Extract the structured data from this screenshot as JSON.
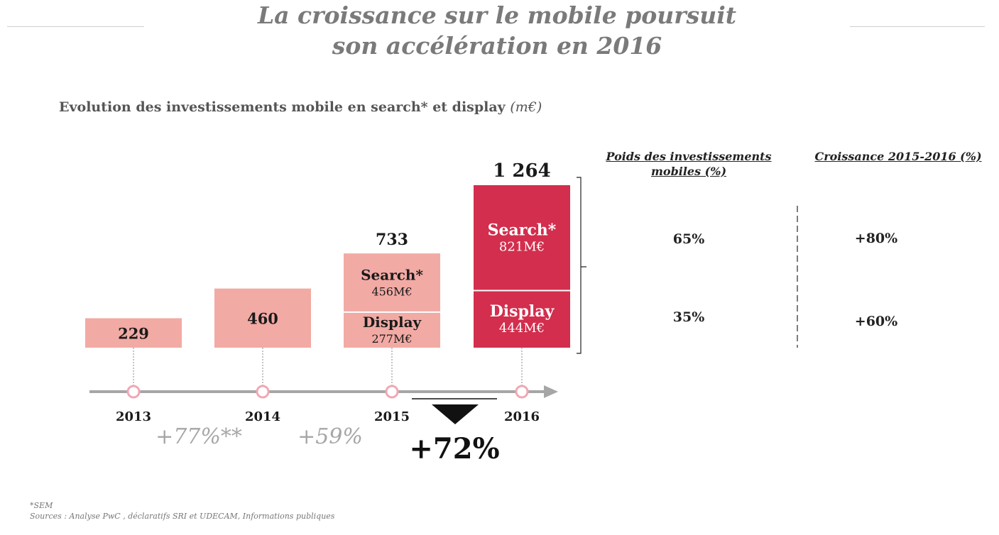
{
  "page": {
    "title_line1": "La croissance sur le mobile poursuit",
    "title_line2": "son accélération en 2016",
    "subtitle": "Evolution des investissements mobile en search* et display",
    "subtitle_unit": "(m€)"
  },
  "chart_data": {
    "type": "bar",
    "title": "Evolution des investissements mobile en search* et display (m€)",
    "categories": [
      "2013",
      "2014",
      "2015",
      "2016"
    ],
    "totals": [
      229,
      460,
      733,
      1264
    ],
    "total_labels": [
      "229",
      "460",
      "733",
      "1 264"
    ],
    "series": [
      {
        "name": "Search*",
        "values": [
          null,
          null,
          456,
          821
        ],
        "value_labels": [
          "",
          "",
          "456M€",
          "821M€"
        ]
      },
      {
        "name": "Display",
        "values": [
          null,
          null,
          277,
          444
        ],
        "value_labels": [
          "",
          "",
          "277M€",
          "444M€"
        ]
      }
    ],
    "growth_labels": [
      "+77%**",
      "+59%",
      "+72%"
    ],
    "colors": {
      "light": "#f2aaa4",
      "dark": "#d32e4d",
      "axis": "#a6a6a6"
    }
  },
  "table": {
    "headers": {
      "weight_line1": "Poids des investissements",
      "weight_line2": "mobiles (%)",
      "growth": "Croissance  2015-2016 (%)"
    },
    "rows": [
      {
        "weight": "65%",
        "growth": "+80%"
      },
      {
        "weight": "35%",
        "growth": "+60%"
      }
    ]
  },
  "footnotes": {
    "line1": "*SEM",
    "line2": "Sources : Analyse PwC , déclaratifs SRI et UDECAM, Informations publiques"
  }
}
